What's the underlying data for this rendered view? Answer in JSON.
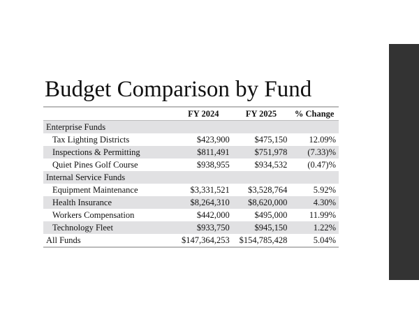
{
  "title": "Budget Comparison by Fund",
  "headers": [
    "",
    "FY 2024",
    "FY 2025",
    "% Change"
  ],
  "rows": [
    {
      "label": "Enterprise Funds",
      "fy2024": "",
      "fy2025": "",
      "change": "",
      "type": "group",
      "shaded": true
    },
    {
      "label": "Tax Lighting Districts",
      "fy2024": "$423,900",
      "fy2025": "$475,150",
      "change": "12.09%",
      "type": "item",
      "shaded": false
    },
    {
      "label": "Inspections & Permitting",
      "fy2024": "$811,491",
      "fy2025": "$751,978",
      "change": "(7.33)%",
      "type": "item",
      "shaded": true
    },
    {
      "label": "Quiet Pines Golf Course",
      "fy2024": "$938,955",
      "fy2025": "$934,532",
      "change": "(0.47)%",
      "type": "item",
      "shaded": false
    },
    {
      "label": "Internal Service Funds",
      "fy2024": "",
      "fy2025": "",
      "change": "",
      "type": "group",
      "shaded": true
    },
    {
      "label": "Equipment Maintenance",
      "fy2024": "$3,331,521",
      "fy2025": "$3,528,764",
      "change": "5.92%",
      "type": "item",
      "shaded": false
    },
    {
      "label": "Health Insurance",
      "fy2024": "$8,264,310",
      "fy2025": "$8,620,000",
      "change": "4.30%",
      "type": "item",
      "shaded": true
    },
    {
      "label": "Workers Compensation",
      "fy2024": "$442,000",
      "fy2025": "$495,000",
      "change": "11.99%",
      "type": "item",
      "shaded": false
    },
    {
      "label": "Technology Fleet",
      "fy2024": "$933,750",
      "fy2025": "$945,150",
      "change": "1.22%",
      "type": "item",
      "shaded": true
    },
    {
      "label": "All Funds",
      "fy2024": "$147,364,253",
      "fy2025": "$154,785,428",
      "change": "5.04%",
      "type": "total",
      "shaded": false
    }
  ],
  "colors": {
    "sidebar": "#333333",
    "shade": "#e1e1e3"
  }
}
